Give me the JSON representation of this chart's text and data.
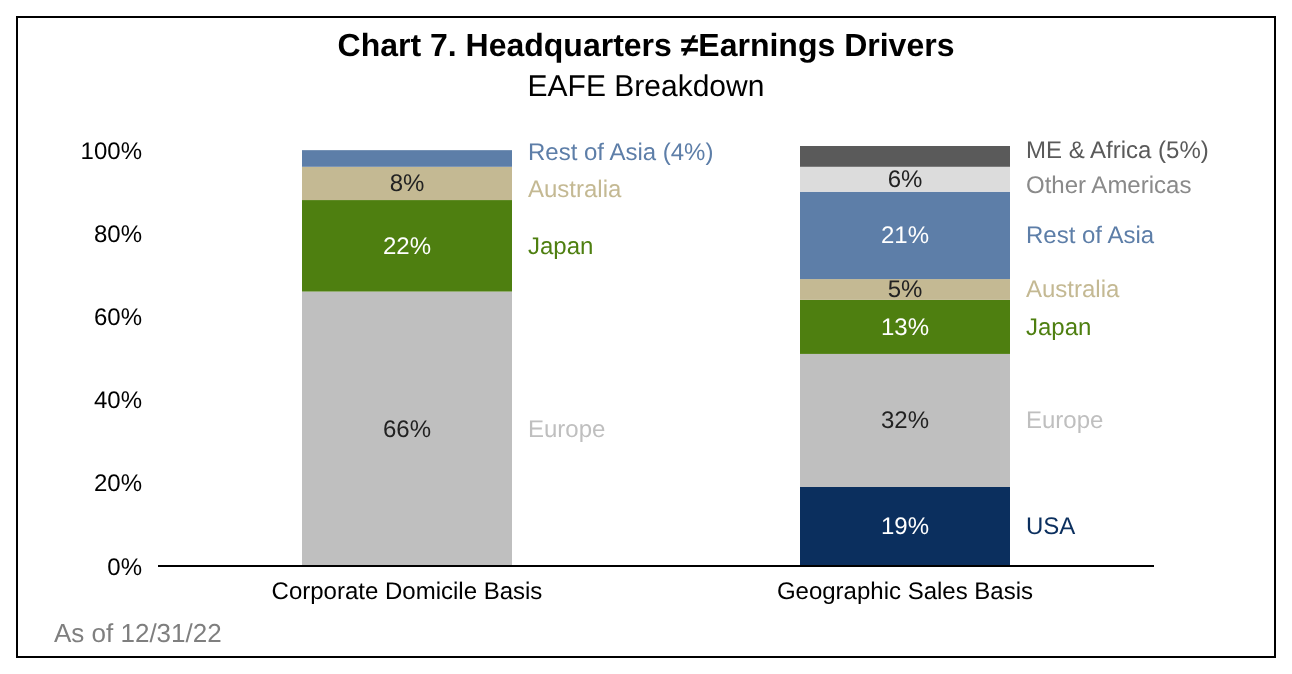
{
  "chart_data": {
    "type": "bar",
    "title": "Chart 7. Headquarters ≠Earnings Drivers",
    "subtitle": "EAFE Breakdown",
    "categories": [
      "Corporate Domicile Basis",
      "Geographic Sales Basis"
    ],
    "stacked": true,
    "legend": false,
    "grid": false,
    "ylim": [
      0,
      101
    ],
    "yticks": [
      {
        "value": 0,
        "label": "0%"
      },
      {
        "value": 20,
        "label": "20%"
      },
      {
        "value": 40,
        "label": "40%"
      },
      {
        "value": 60,
        "label": "60%"
      },
      {
        "value": 80,
        "label": "80%"
      },
      {
        "value": 100,
        "label": "100%"
      }
    ],
    "series": [
      {
        "name": "USA",
        "color": "#0b2f5e",
        "values": [
          0,
          19
        ],
        "value_labels": [
          null,
          "19%"
        ]
      },
      {
        "name": "Europe",
        "color": "#bfbfbf",
        "values": [
          66,
          32
        ],
        "value_labels": [
          "66%",
          "32%"
        ]
      },
      {
        "name": "Japan",
        "color": "#4e7f10",
        "values": [
          22,
          13
        ],
        "value_labels": [
          "22%",
          "13%"
        ]
      },
      {
        "name": "Australia",
        "color": "#c4b993",
        "values": [
          8,
          5
        ],
        "value_labels": [
          "8%",
          "5%"
        ]
      },
      {
        "name": "Rest of Asia",
        "color": "#5d7ea8",
        "values": [
          4,
          21
        ],
        "value_labels": [
          "(4%)",
          "21%"
        ]
      },
      {
        "name": "Other Americas",
        "color": "#dcdcdc",
        "values": [
          0,
          6
        ],
        "value_labels": [
          null,
          "6%"
        ]
      },
      {
        "name": "ME & Africa",
        "color": "#5a5a5a",
        "values": [
          0,
          5
        ],
        "value_labels": [
          null,
          "(5%)"
        ]
      }
    ],
    "annotations": [
      "As of 12/31/22"
    ]
  }
}
